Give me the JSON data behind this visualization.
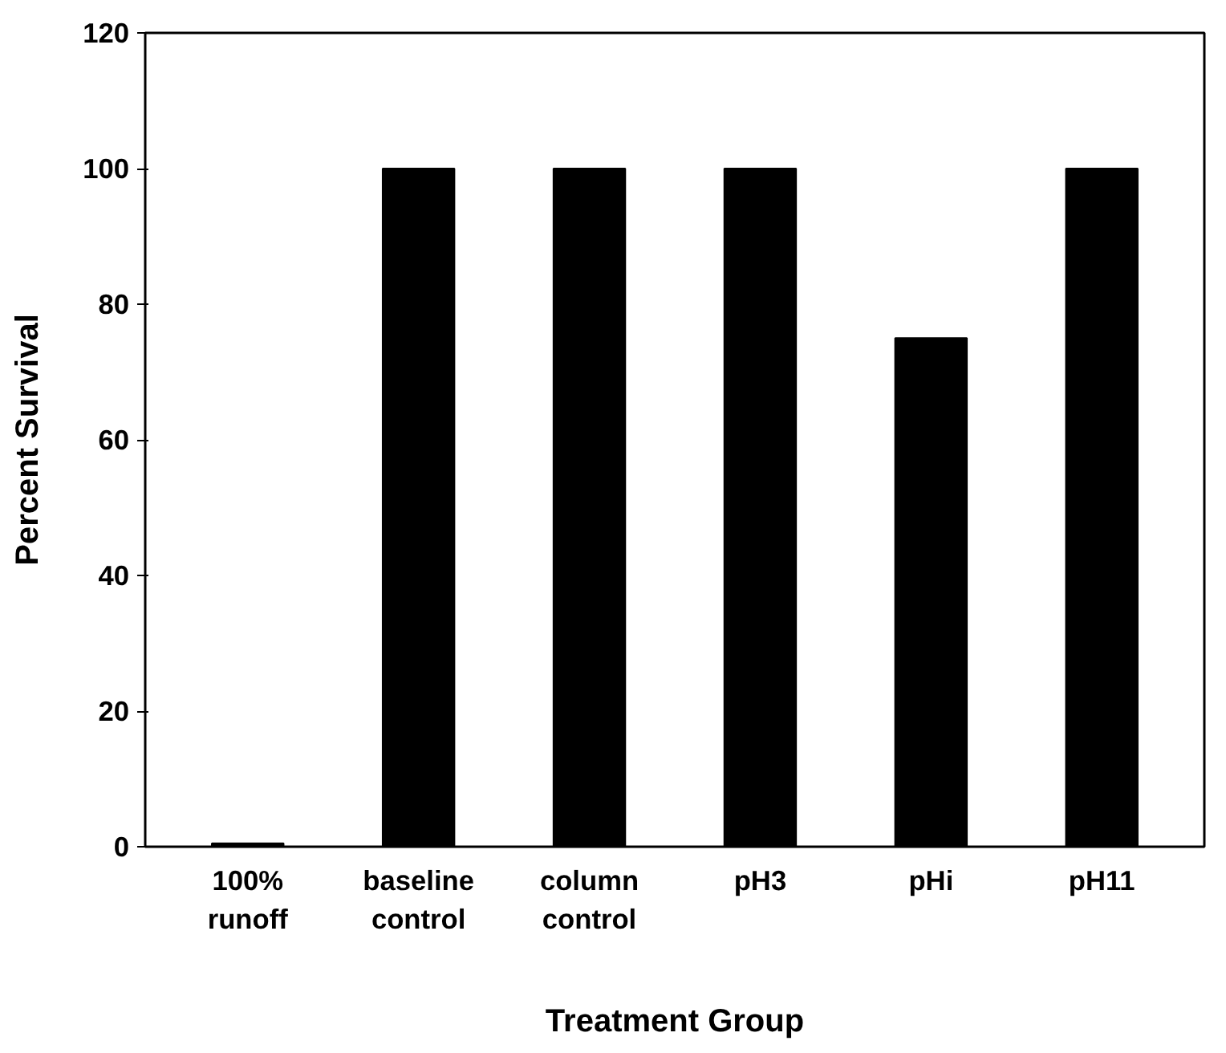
{
  "chart_data": {
    "type": "bar",
    "xlabel": "Treatment Group",
    "ylabel": "Percent Survival",
    "categories": [
      "100%\nrunoff",
      "baseline\ncontrol",
      "column\ncontrol",
      "pH3",
      "pHi",
      "pH11"
    ],
    "values": [
      0.5,
      100,
      100,
      100,
      75,
      100
    ],
    "color": "#000000",
    "ylim": [
      0,
      120
    ],
    "yticks": [
      0,
      20,
      40,
      60,
      80,
      100,
      120
    ],
    "grid": false
  }
}
